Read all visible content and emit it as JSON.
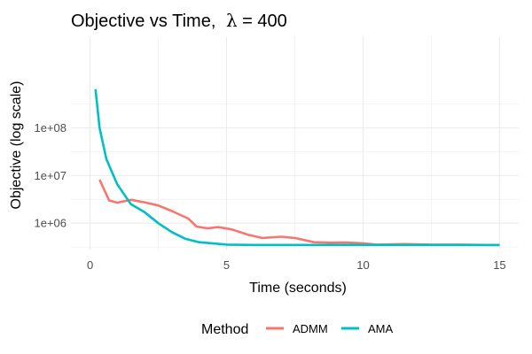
{
  "chart_data": {
    "type": "line",
    "title": "Objective vs Time,  λ = 400",
    "title_main": "Objective vs Time, ",
    "title_symbol": "λ",
    "title_rest": " = 400",
    "xlabel": "Time (seconds)",
    "ylabel": "Objective (log scale)",
    "xlim": [
      -0.7,
      15.7
    ],
    "ylim": [
      280000,
      8000000000
    ],
    "y_scale": "log",
    "grid": true,
    "x_ticks": [
      0,
      5,
      10,
      15
    ],
    "x_tick_labels": [
      "0",
      "5",
      "10",
      "15"
    ],
    "y_ticks": [
      1000000,
      10000000,
      100000000
    ],
    "y_tick_labels": [
      "1e+06",
      "1e+07",
      "1e+08"
    ],
    "legend": {
      "title": "Method",
      "position": "bottom",
      "labels": [
        "ADMM",
        "AMA"
      ]
    },
    "series": [
      {
        "name": "ADMM",
        "color": "#f8766d",
        "points": [
          [
            0.35,
            8200000
          ],
          [
            0.7,
            3000000
          ],
          [
            1.0,
            2700000
          ],
          [
            1.5,
            3100000
          ],
          [
            2.0,
            2750000
          ],
          [
            2.5,
            2350000
          ],
          [
            3.0,
            1800000
          ],
          [
            3.6,
            1250000
          ],
          [
            3.9,
            850000
          ],
          [
            4.3,
            780000
          ],
          [
            4.7,
            830000
          ],
          [
            5.2,
            740000
          ],
          [
            5.8,
            570000
          ],
          [
            6.3,
            490000
          ],
          [
            7.0,
            520000
          ],
          [
            7.5,
            490000
          ],
          [
            8.2,
            400000
          ],
          [
            8.8,
            390000
          ],
          [
            9.4,
            395000
          ],
          [
            10.0,
            380000
          ],
          [
            10.5,
            355000
          ],
          [
            11.5,
            365000
          ],
          [
            12.5,
            355000
          ],
          [
            13.5,
            355000
          ],
          [
            14.5,
            350000
          ],
          [
            15.0,
            350000
          ]
        ]
      },
      {
        "name": "AMA",
        "color": "#00bfc4",
        "points": [
          [
            0.2,
            650000000
          ],
          [
            0.35,
            100000000
          ],
          [
            0.6,
            22000000
          ],
          [
            1.0,
            6500000
          ],
          [
            1.5,
            2500000
          ],
          [
            2.0,
            1700000
          ],
          [
            2.5,
            1000000
          ],
          [
            3.0,
            650000
          ],
          [
            3.5,
            470000
          ],
          [
            4.0,
            400000
          ],
          [
            5.0,
            355000
          ],
          [
            6.0,
            350000
          ],
          [
            8.0,
            350000
          ],
          [
            10.0,
            350000
          ],
          [
            12.0,
            350000
          ],
          [
            15.0,
            350000
          ]
        ]
      }
    ]
  }
}
